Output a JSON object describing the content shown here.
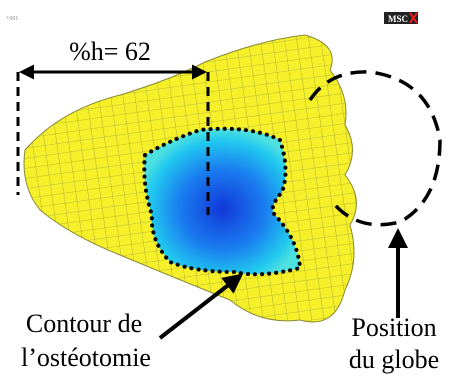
{
  "header": {
    "code": "+001",
    "logo": "MSC"
  },
  "labels": {
    "height": "%h= 62",
    "contour": [
      "Contour de",
      "l’ostéotomie"
    ],
    "globe": [
      "Position",
      "du globe"
    ]
  }
}
